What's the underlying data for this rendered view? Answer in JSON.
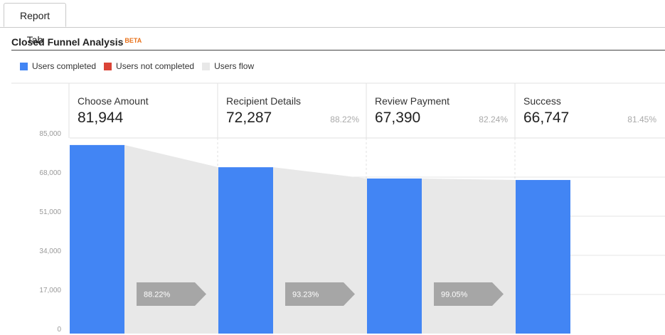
{
  "tabs": [
    {
      "label": "Report Tab",
      "active": true
    }
  ],
  "report": {
    "title": "Closed Funnel Analysis",
    "badge": "BETA"
  },
  "legend": [
    {
      "label": "Users completed",
      "color": "#4285f4"
    },
    {
      "label": "Users not completed",
      "color": "#db4437"
    },
    {
      "label": "Users flow",
      "color": "#e8e8e8"
    }
  ],
  "chart_data": {
    "type": "bar",
    "categories": [
      "Choose Amount",
      "Recipient Details",
      "Review Payment",
      "Success"
    ],
    "values": [
      81944,
      72287,
      67390,
      66747
    ],
    "value_labels": [
      "81,944",
      "72,287",
      "67,390",
      "66,747"
    ],
    "overall_percent": [
      "",
      "88.22%",
      "82.24%",
      "81.45%"
    ],
    "step_conversion": [
      "88.22%",
      "93.23%",
      "99.05%"
    ],
    "ylim": [
      0,
      85000
    ],
    "yticks": [
      0,
      17000,
      34000,
      51000,
      68000,
      85000
    ],
    "ytick_labels": [
      "0",
      "17,000",
      "34,000",
      "51,000",
      "68,000",
      "85,000"
    ],
    "grid": true,
    "legend_position": "top-left",
    "colors": {
      "completed": "#4285f4",
      "not_completed": "#db4437",
      "flow": "#e8e8e8",
      "arrow": "#a6a6a6"
    }
  }
}
